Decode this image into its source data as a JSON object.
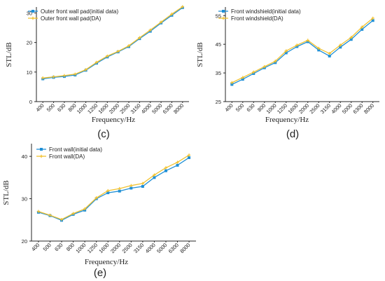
{
  "figure_labels": [
    "(c)",
    "(d)",
    "(e)"
  ],
  "colors": {
    "initial": "#1f8fd6",
    "da": "#f2c230",
    "axis": "#262626"
  },
  "chart_data": [
    {
      "type": "line",
      "panel": "(c)",
      "xlabel": "Frequency/Hz",
      "ylabel": "STL/dB",
      "categories": [
        "400",
        "500",
        "630",
        "800",
        "1000",
        "1250",
        "1600",
        "2000",
        "2500",
        "3150",
        "4000",
        "5000",
        "6300",
        "8000"
      ],
      "ylim": [
        0,
        32
      ],
      "yticks": [
        0,
        10,
        20,
        30
      ],
      "series": [
        {
          "name": "Outer front wall pad(initial data)",
          "values": [
            7.7,
            8.2,
            8.5,
            9.0,
            10.6,
            13.0,
            15.1,
            16.8,
            18.6,
            21.3,
            23.8,
            26.6,
            29.2,
            31.8
          ]
        },
        {
          "name": "Outer front wall pad(DA)",
          "values": [
            8.0,
            8.4,
            8.8,
            9.3,
            10.8,
            13.3,
            15.4,
            17.0,
            18.9,
            21.6,
            24.2,
            26.9,
            29.6,
            32.1
          ]
        }
      ]
    },
    {
      "type": "line",
      "panel": "(d)",
      "xlabel": "Frequency/Hz",
      "ylabel": "STL/dB",
      "categories": [
        "400",
        "500",
        "630",
        "800",
        "1000",
        "1250",
        "1600",
        "2000",
        "2500",
        "3150",
        "4000",
        "5000",
        "6300",
        "8000"
      ],
      "ylim": [
        25,
        58
      ],
      "yticks": [
        25,
        35,
        45,
        55
      ],
      "series": [
        {
          "name": "Front windshield(initial data)",
          "values": [
            31.0,
            32.8,
            34.8,
            36.8,
            38.6,
            42.0,
            44.2,
            45.9,
            43.0,
            40.9,
            44.0,
            46.7,
            50.2,
            53.3
          ]
        },
        {
          "name": "Front windshield(DA)",
          "values": [
            31.6,
            33.4,
            35.3,
            37.2,
            39.1,
            42.7,
            44.7,
            46.4,
            43.6,
            41.8,
            44.7,
            47.4,
            51.0,
            54.1
          ]
        }
      ]
    },
    {
      "type": "line",
      "panel": "(e)",
      "xlabel": "Frequency/Hz",
      "ylabel": "STL/dB",
      "categories": [
        "400",
        "500",
        "630",
        "800",
        "1000",
        "1250",
        "1600",
        "2000",
        "2500",
        "3150",
        "4000",
        "5000",
        "6300",
        "8000"
      ],
      "ylim": [
        20,
        43
      ],
      "yticks": [
        20,
        30,
        40
      ],
      "series": [
        {
          "name": "Front wall(initial data)",
          "values": [
            26.8,
            26.0,
            24.9,
            26.3,
            27.3,
            30.0,
            31.4,
            31.8,
            32.5,
            32.9,
            35.0,
            36.6,
            37.9,
            39.7
          ]
        },
        {
          "name": "Front wall(DA)",
          "values": [
            27.0,
            26.1,
            25.1,
            26.5,
            27.6,
            30.2,
            31.9,
            32.4,
            33.1,
            33.6,
            35.6,
            37.3,
            38.6,
            40.3
          ]
        }
      ]
    }
  ]
}
